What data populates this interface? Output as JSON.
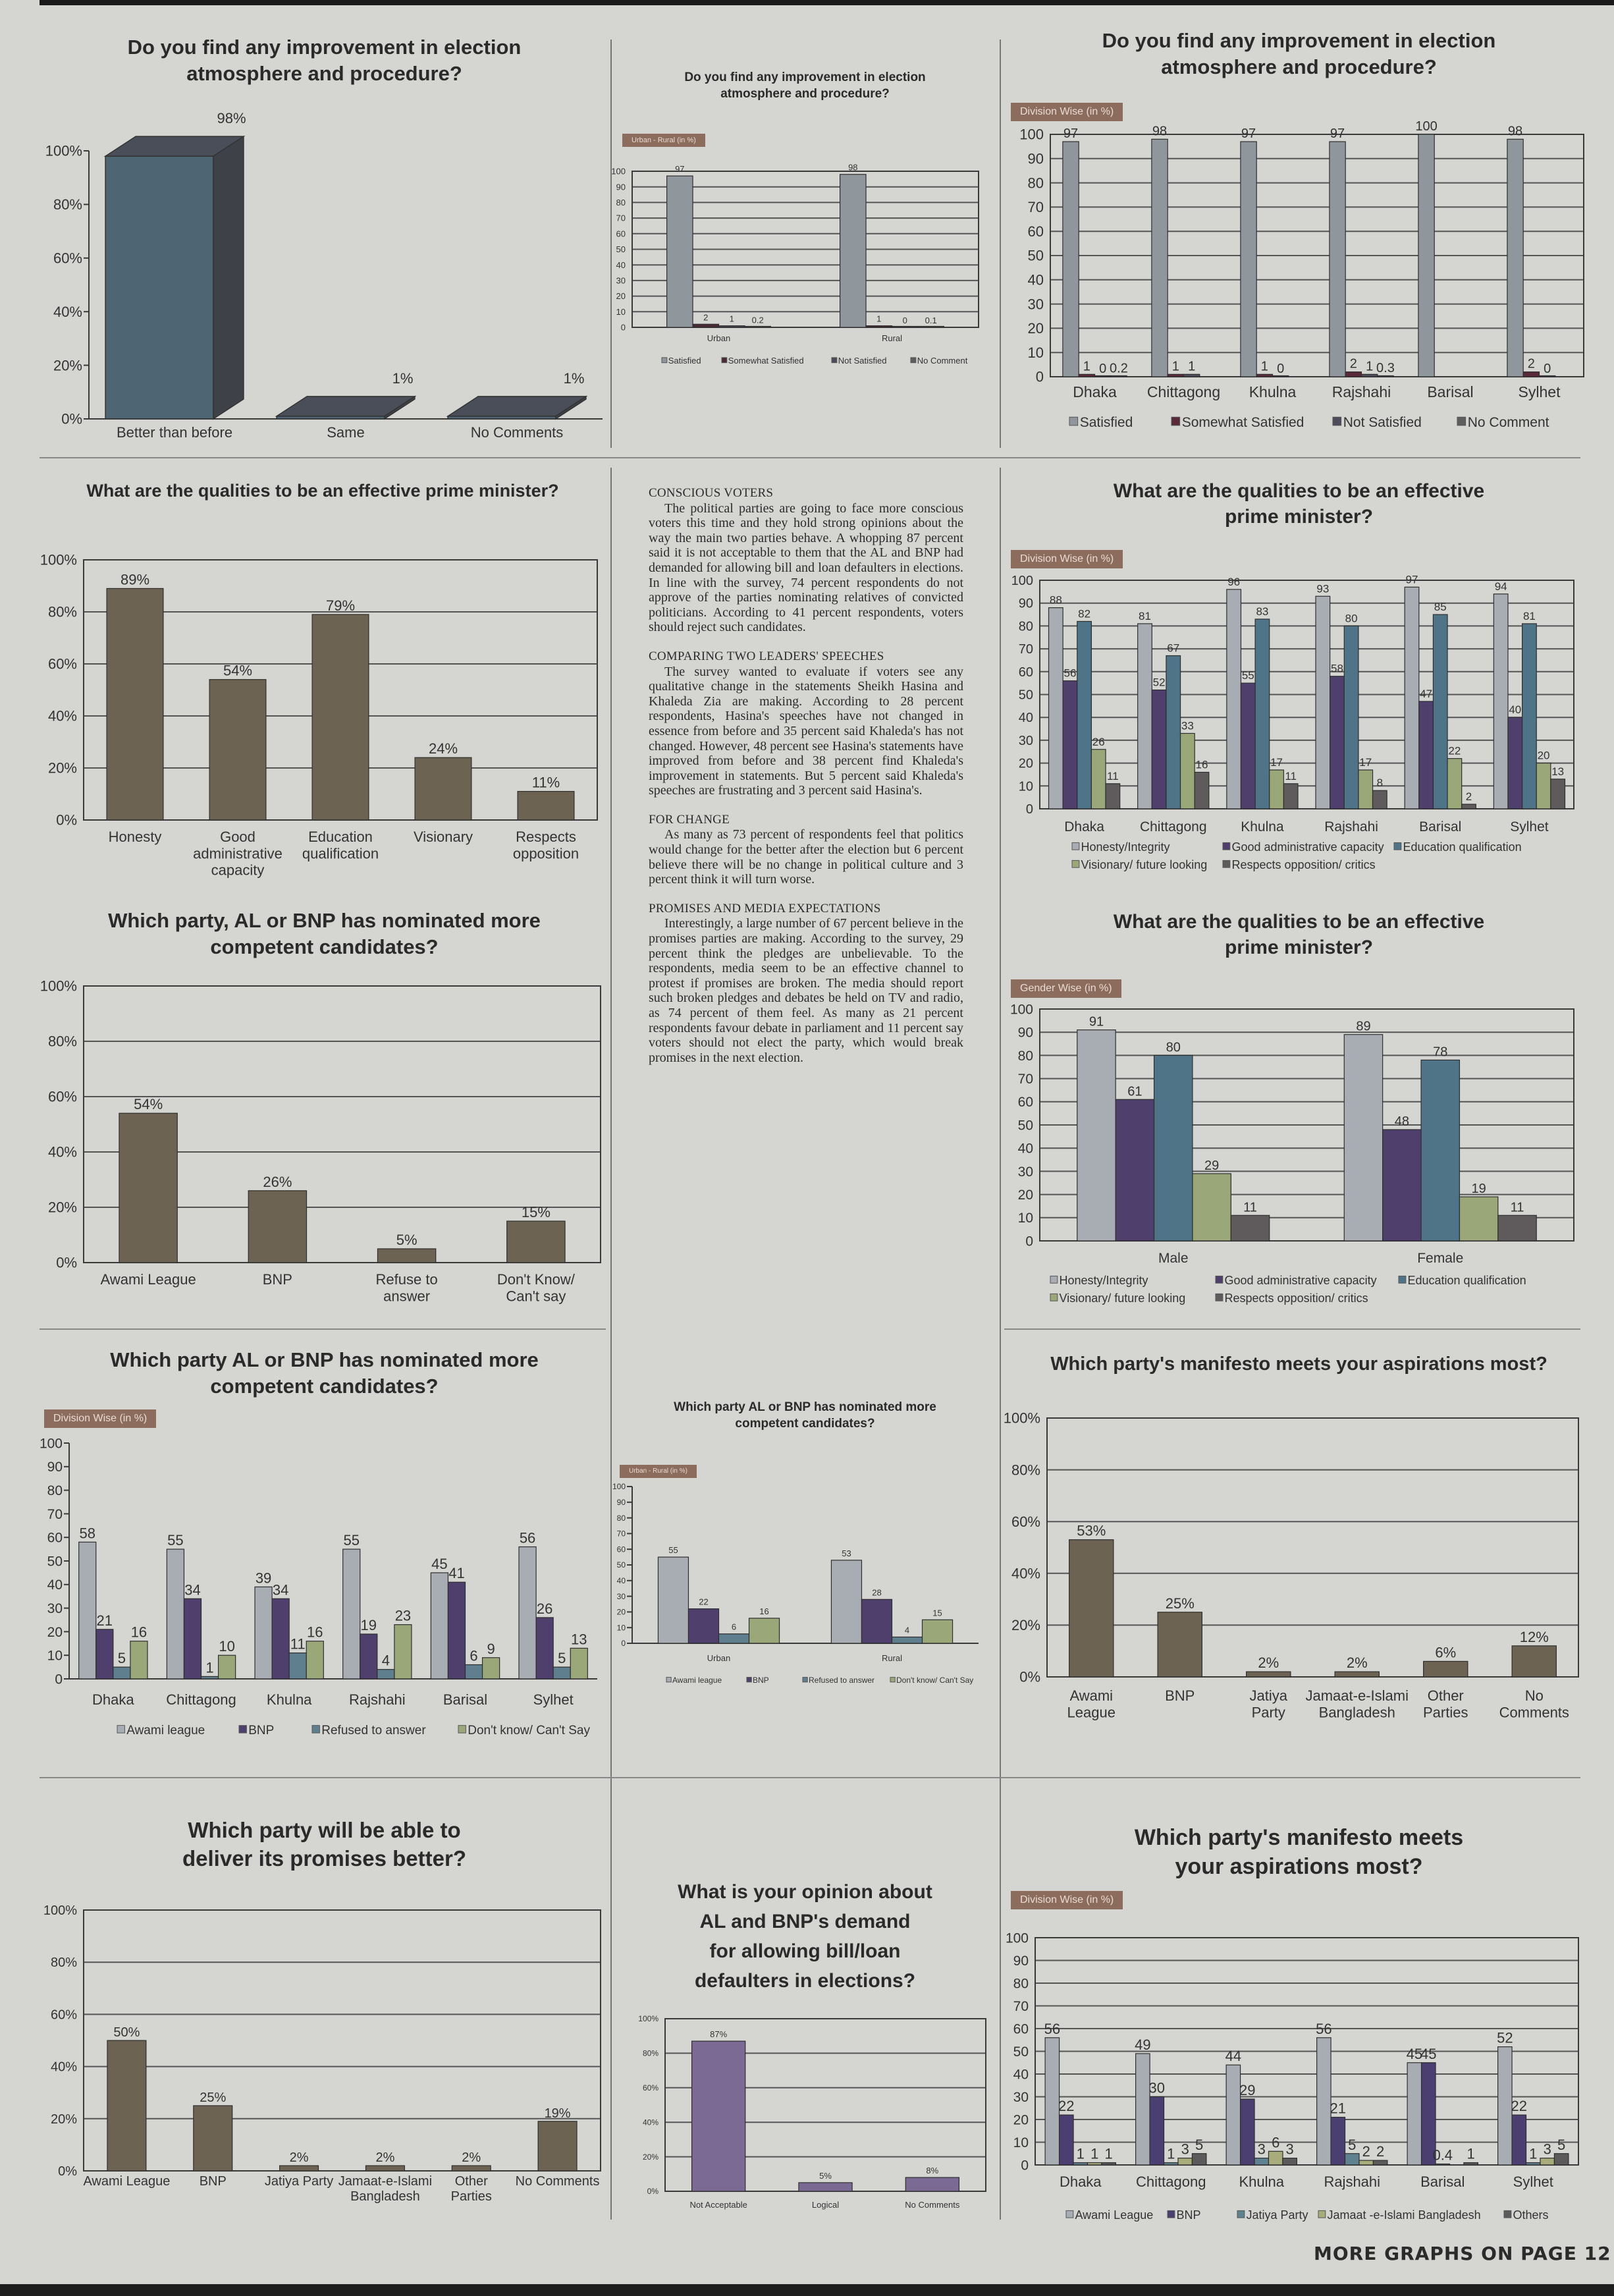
{
  "chart_data": [
    {
      "type": "bar",
      "title": "Do you find any improvement in election\natmosphere and procedure?",
      "categories": [
        "Better than before",
        "Same",
        "No Comments"
      ],
      "values": [
        98,
        1,
        1
      ],
      "ylim": [
        0,
        100
      ],
      "unit": "%",
      "style": "3d",
      "color": "#4e6674",
      "grid": false
    },
    {
      "type": "bar",
      "title": "Do you find any improvement in election\natmosphere and procedure?",
      "badge": "Urban - Rural (in %)",
      "categories": [
        "Urban",
        "Rural"
      ],
      "series": [
        {
          "name": "Satisfied",
          "values": [
            97,
            98
          ],
          "color": "#8f969c"
        },
        {
          "name": "Somewhat Satisfied",
          "values": [
            2,
            1
          ],
          "color": "#4a2a36"
        },
        {
          "name": "Not Satisfied",
          "values": [
            1,
            0
          ],
          "color": "#4c4c5a"
        },
        {
          "name": "No Comment",
          "values": [
            0.2,
            0.1
          ],
          "color": "#5e5e5e"
        }
      ],
      "ylim": [
        0,
        100
      ],
      "grid": true
    },
    {
      "type": "bar",
      "title": "Do you find any improvement in election\natmosphere and procedure?",
      "badge": "Division Wise (in %)",
      "categories": [
        "Dhaka",
        "Chittagong",
        "Khulna",
        "Rajshahi",
        "Barisal",
        "Sylhet"
      ],
      "series": [
        {
          "name": "Satisfied",
          "values": [
            97,
            98,
            97,
            97,
            100,
            98
          ],
          "color": "#8f969c"
        },
        {
          "name": "Somewhat Satisfied",
          "values": [
            1,
            1,
            1,
            2,
            null,
            2
          ],
          "color": "#5b2a3a"
        },
        {
          "name": "Not Satisfied",
          "values": [
            0,
            1,
            0,
            1,
            null,
            0
          ],
          "color": "#4c4c5a"
        },
        {
          "name": "No Comment",
          "values": [
            0.2,
            null,
            null,
            0.3,
            null,
            null
          ],
          "color": "#5e5e5e"
        }
      ],
      "ylim": [
        0,
        100
      ],
      "grid": true
    },
    {
      "type": "bar",
      "title": "What are the qualities to be an effective prime minister?",
      "categories": [
        "Honesty",
        "Good administrative capacity",
        "Education qualification",
        "Visionary",
        "Respects opposition"
      ],
      "values": [
        89,
        54,
        79,
        24,
        11
      ],
      "ylim": [
        0,
        100
      ],
      "unit": "%",
      "color": "#6d6352",
      "grid": true
    },
    {
      "type": "bar",
      "title": "Which party, AL or BNP has nominated more\ncompetent candidates?",
      "categories": [
        "Awami League",
        "BNP",
        "Refuse to answer",
        "Don't Know/ Can't say"
      ],
      "values": [
        54,
        26,
        5,
        15
      ],
      "ylim": [
        0,
        100
      ],
      "unit": "%",
      "color": "#6d6352",
      "grid": true
    },
    {
      "type": "bar",
      "title": "What are the qualities to be an effective\nprime minister?",
      "badge": "Division Wise (in %)",
      "categories": [
        "Dhaka",
        "Chittagong",
        "Khulna",
        "Rajshahi",
        "Barisal",
        "Sylhet"
      ],
      "series": [
        {
          "name": "Honesty/Integrity",
          "values": [
            88,
            81,
            96,
            93,
            97,
            94
          ],
          "color": "#a8adb3"
        },
        {
          "name": "Good administrative capacity",
          "values": [
            56,
            52,
            55,
            58,
            47,
            40
          ],
          "color": "#4e3f6d"
        },
        {
          "name": "Education qualification",
          "values": [
            82,
            67,
            83,
            80,
            85,
            81
          ],
          "color": "#4f7387"
        },
        {
          "name": "Visionary/ future looking",
          "values": [
            26,
            33,
            17,
            17,
            22,
            20
          ],
          "color": "#9aa779"
        },
        {
          "name": "Respects opposition/ critics",
          "values": [
            11,
            16,
            11,
            8,
            2,
            13
          ],
          "color": "#5f5b5c"
        }
      ],
      "ylim": [
        0,
        100
      ],
      "grid": true
    },
    {
      "type": "bar",
      "title": "What are the qualities to be an effective\nprime minister?",
      "badge": "Gender Wise (in %)",
      "categories": [
        "Male",
        "Female"
      ],
      "series": [
        {
          "name": "Honesty/Integrity",
          "values": [
            91,
            89
          ],
          "color": "#a8adb3"
        },
        {
          "name": "Good administrative capacity",
          "values": [
            61,
            48
          ],
          "color": "#4e3f6d"
        },
        {
          "name": "Education qualification",
          "values": [
            80,
            78
          ],
          "color": "#4f7387"
        },
        {
          "name": "Visionary/ future looking",
          "values": [
            29,
            19
          ],
          "color": "#9aa779"
        },
        {
          "name": "Respects opposition/ critics",
          "values": [
            11,
            11
          ],
          "color": "#5f5b5c"
        }
      ],
      "ylim": [
        0,
        100
      ],
      "grid": true
    },
    {
      "type": "bar",
      "title": "Which party AL or BNP has nominated more\ncompetent candidates?",
      "badge": "Division Wise (in %)",
      "categories": [
        "Dhaka",
        "Chittagong",
        "Khulna",
        "Rajshahi",
        "Barisal",
        "Sylhet"
      ],
      "series": [
        {
          "name": "Awami league",
          "values": [
            58,
            55,
            39,
            55,
            45,
            56
          ],
          "color": "#a8adb3"
        },
        {
          "name": "BNP",
          "values": [
            21,
            34,
            34,
            19,
            41,
            26
          ],
          "color": "#4e3f6d"
        },
        {
          "name": "Refused to answer",
          "values": [
            5,
            1,
            11,
            4,
            6,
            5
          ],
          "color": "#5f7f8e"
        },
        {
          "name": "Don't know/ Can't Say",
          "values": [
            16,
            10,
            16,
            23,
            9,
            13
          ],
          "color": "#9aa779"
        }
      ],
      "ylim": [
        0,
        100
      ],
      "grid": false
    },
    {
      "type": "bar",
      "title": "Which party AL or BNP has nominated more\ncompetent candidates?",
      "badge": "Urban - Rural (in %)",
      "categories": [
        "Urban",
        "Rural"
      ],
      "series": [
        {
          "name": "Awami league",
          "values": [
            55,
            53
          ],
          "color": "#a8adb3"
        },
        {
          "name": "BNP",
          "values": [
            22,
            28
          ],
          "color": "#4e3f6d"
        },
        {
          "name": "Refused to answer",
          "values": [
            6,
            4
          ],
          "color": "#5f7f8e"
        },
        {
          "name": "Don't know/ Can't Say",
          "values": [
            16,
            15
          ],
          "color": "#9aa779"
        }
      ],
      "ylim": [
        0,
        100
      ],
      "grid": false
    },
    {
      "type": "bar",
      "title": "Which party's manifesto meets your aspirations most?",
      "categories": [
        "Awami League",
        "BNP",
        "Jatiya Party",
        "Jamaat-e-Islami Bangladesh",
        "Other Parties",
        "No Comments"
      ],
      "values": [
        53,
        25,
        2,
        2,
        6,
        12
      ],
      "ylim": [
        0,
        100
      ],
      "unit": "%",
      "color": "#6d6352",
      "grid": true
    },
    {
      "type": "bar",
      "title": "Which party will be able to\ndeliver its promises better?",
      "categories": [
        "Awami League",
        "BNP",
        "Jatiya Party",
        "Jamaat-e-Islami Bangladesh",
        "Other Parties",
        "No Comments"
      ],
      "values": [
        50,
        25,
        2,
        2,
        2,
        19
      ],
      "ylim": [
        0,
        100
      ],
      "unit": "%",
      "color": "#6d6352",
      "grid": true
    },
    {
      "type": "bar",
      "title": "What is your opinion about\nAL and BNP's demand\nfor allowing bill/loan\ndefaulters in elections?",
      "categories": [
        "Not Acceptable",
        "Logical",
        "No Comments"
      ],
      "values": [
        87,
        5,
        8
      ],
      "ylim": [
        0,
        100
      ],
      "unit": "%",
      "color": "#7b6a94",
      "grid": true
    },
    {
      "type": "bar",
      "title": "Which party's manifesto meets\nyour aspirations most?",
      "badge": "Division Wise (in %)",
      "categories": [
        "Dhaka",
        "Chittagong",
        "Khulna",
        "Rajshahi",
        "Barisal",
        "Sylhet"
      ],
      "series": [
        {
          "name": "Awami League",
          "values": [
            56,
            49,
            44,
            56,
            45,
            52
          ],
          "color": "#a8adb3"
        },
        {
          "name": "BNP",
          "values": [
            22,
            30,
            29,
            21,
            45,
            22
          ],
          "color": "#4a3f70"
        },
        {
          "name": "Jatiya Party",
          "values": [
            1,
            1,
            3,
            5,
            0.4,
            1
          ],
          "color": "#5f8190"
        },
        {
          "name": "Jamaat -e-Islami Bangladesh",
          "values": [
            1,
            3,
            6,
            2,
            null,
            3
          ],
          "color": "#a8ab7a"
        },
        {
          "name": "Others",
          "values": [
            1,
            5,
            3,
            2,
            1,
            5
          ],
          "color": "#5c5a5a"
        }
      ],
      "ylim": [
        0,
        100
      ],
      "grid": true
    }
  ],
  "article": [
    {
      "heading": "CONSCIOUS VOTERS",
      "body": "The political parties are going to face more conscious voters this time and they hold strong opinions about the way the main two parties behave. A whopping 87 percent said it is not acceptable to them that the AL and BNP had demanded for allowing bill and loan defaulters in elections. In line with the survey, 74 percent respondents do not approve of the parties nominating relatives of convicted politicians. According to 41 percent respondents, voters should reject such candidates."
    },
    {
      "heading": "COMPARING TWO LEADERS' SPEECHES",
      "body": "The survey wanted to evaluate if voters see any qualitative change in the statements Sheikh Hasina and Khaleda Zia are making. According to 28 percent respondents, Hasina's speeches have not changed in essence from before and 35 percent said Khaleda's has not changed. However, 48 percent see Hasina's statements have improved from before and 38 percent find Khaleda's improvement in statements. But 5 percent said Khaleda's speeches are frustrating and 3 percent said Hasina's."
    },
    {
      "heading": "FOR CHANGE",
      "body": "As many as 73 percent of respondents feel that politics would change for the better after the election but 6 percent believe there will be no change in political culture and 3 percent think it will turn worse."
    },
    {
      "heading": "PROMISES AND MEDIA EXPECTATIONS",
      "body": "Interestingly, a large number of 67 percent believe in the promises parties are making. According to the survey, 29 percent think the pledges are unbelievable. To the respondents, media seem to be an effective channel to protest if promises are broken. The media should report such broken pledges and debates be held on TV and radio, as 74 percent of them feel. As many as 21 percent respondents favour debate in parliament and 11 percent say voters should not elect the party, which would break promises in the next election."
    }
  ],
  "footer": "MORE GRAPHS ON PAGE 12"
}
